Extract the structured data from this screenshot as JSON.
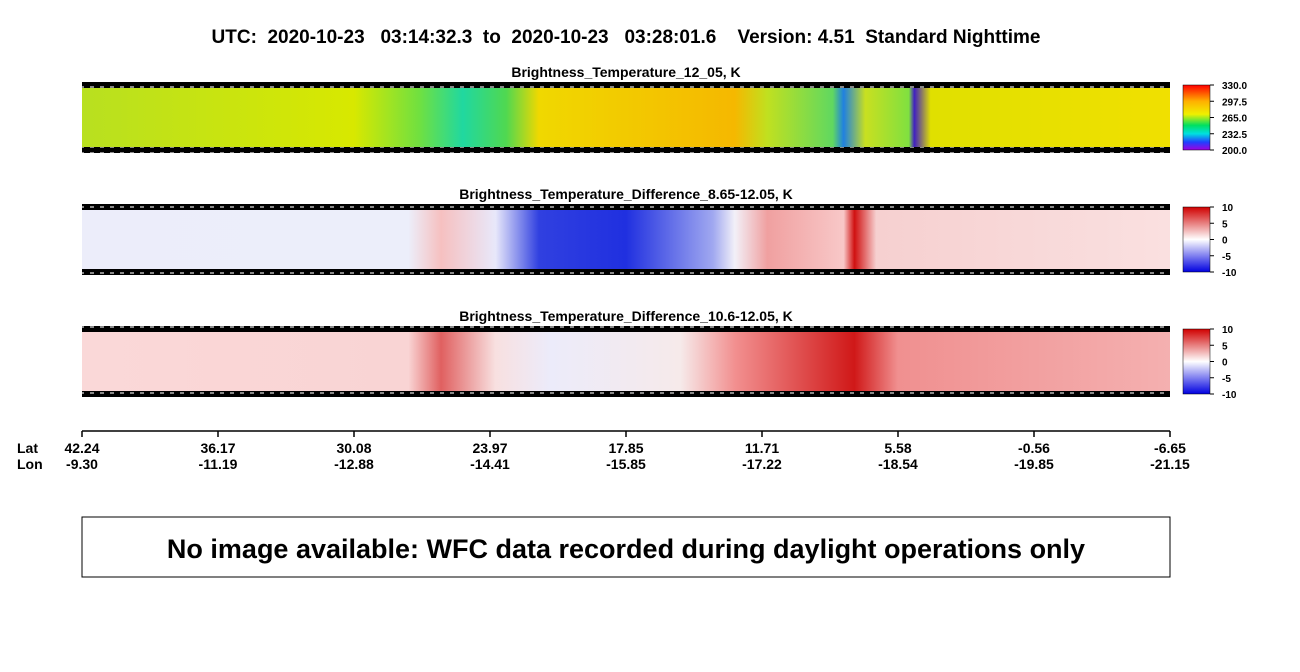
{
  "header": {
    "title": "UTC:  2020-10-23   03:14:32.3  to  2020-10-23   03:28:01.6    Version: 4.51  Standard Nighttime"
  },
  "panels": [
    {
      "title": "Brightness_Temperature_12_05, K",
      "colorbar": [
        "330.0",
        "297.5",
        "265.0",
        "232.5",
        "200.0"
      ]
    },
    {
      "title": "Brightness_Temperature_Difference_8.65-12.05, K",
      "colorbar": [
        "10",
        "5",
        "0",
        "-5",
        "-10"
      ]
    },
    {
      "title": "Brightness_Temperature_Difference_10.6-12.05, K",
      "colorbar": [
        "10",
        "5",
        "0",
        "-5",
        "-10"
      ]
    }
  ],
  "axis": {
    "row_labels": [
      "Lat",
      "Lon"
    ],
    "lat": [
      "42.24",
      "36.17",
      "30.08",
      "23.97",
      "17.85",
      "11.71",
      "5.58",
      "-0.56",
      "-6.65"
    ],
    "lon": [
      "-9.30",
      "-11.19",
      "-12.88",
      "-14.41",
      "-15.85",
      "-17.22",
      "-18.54",
      "-19.85",
      "-21.15"
    ]
  },
  "message": "No image available: WFC data recorded during daylight operations only"
}
